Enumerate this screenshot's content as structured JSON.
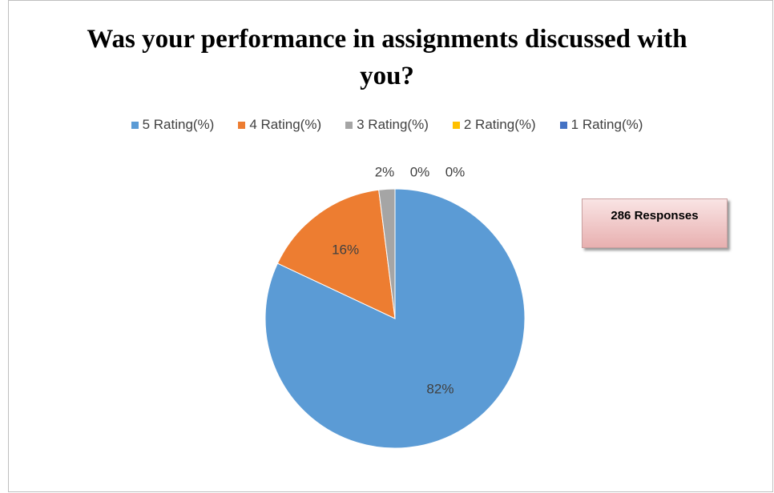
{
  "chart_data": {
    "type": "pie",
    "title": "Was your performance in assignments discussed with you?",
    "categories": [
      "5 Rating(%)",
      "4 Rating(%)",
      "3 Rating(%)",
      "2 Rating(%)",
      "1 Rating(%)"
    ],
    "values": [
      82,
      16,
      2,
      0,
      0
    ],
    "value_labels": [
      "82%",
      "16%",
      "2%",
      "0%",
      "0%"
    ],
    "colors": [
      "#5b9bd5",
      "#ed7d31",
      "#a5a5a5",
      "#ffc000",
      "#4472c4"
    ],
    "legend": "top",
    "annotation": "286 Responses"
  }
}
